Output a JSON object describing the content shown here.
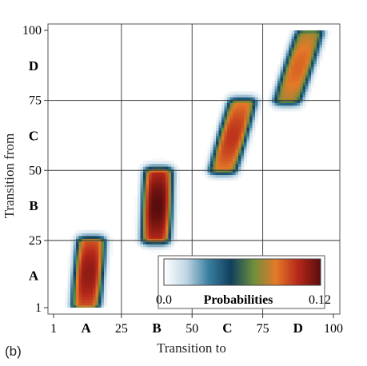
{
  "panel_label": "(b)",
  "colorbar": {
    "title": "Probabilities",
    "min_label": "0.0",
    "max_label": "0.12",
    "stops": [
      "#ffffff",
      "#bfd6e4",
      "#3a7ea0",
      "#10405e",
      "#6c8f3d",
      "#e47a28",
      "#b5271a",
      "#5a0d0d"
    ]
  },
  "chart_data": {
    "type": "heatmap",
    "title": "",
    "xlabel": "Transition to",
    "ylabel": "Transition from",
    "xlim": [
      1,
      100
    ],
    "ylim": [
      1,
      100
    ],
    "x_ticks": [
      "1",
      "25",
      "50",
      "75",
      "100"
    ],
    "y_ticks": [
      "1",
      "25",
      "50",
      "75",
      "100"
    ],
    "x_tick_values": [
      1,
      25,
      50,
      75,
      100
    ],
    "y_tick_values": [
      1,
      25,
      50,
      75,
      100
    ],
    "category_labels": [
      "A",
      "B",
      "C",
      "D"
    ],
    "category_centers": [
      12.5,
      37.5,
      62.5,
      87.5
    ],
    "grid": true,
    "value_range": [
      0.0,
      0.12
    ],
    "blocks": [
      {
        "name": "A",
        "from": [
          1,
          25
        ],
        "to_center_at_from_start": 12,
        "to_center_at_from_end": 14,
        "peak": 0.11
      },
      {
        "name": "B",
        "from": [
          25,
          50
        ],
        "to_center_at_from_start": 37,
        "to_center_at_from_end": 38,
        "peak": 0.12
      },
      {
        "name": "C",
        "from": [
          50,
          75
        ],
        "to_center_at_from_start": 61,
        "to_center_at_from_end": 68,
        "peak": 0.1
      },
      {
        "name": "D",
        "from": [
          75,
          100
        ],
        "to_center_at_from_start": 84,
        "to_center_at_from_end": 92,
        "peak": 0.09
      }
    ]
  }
}
